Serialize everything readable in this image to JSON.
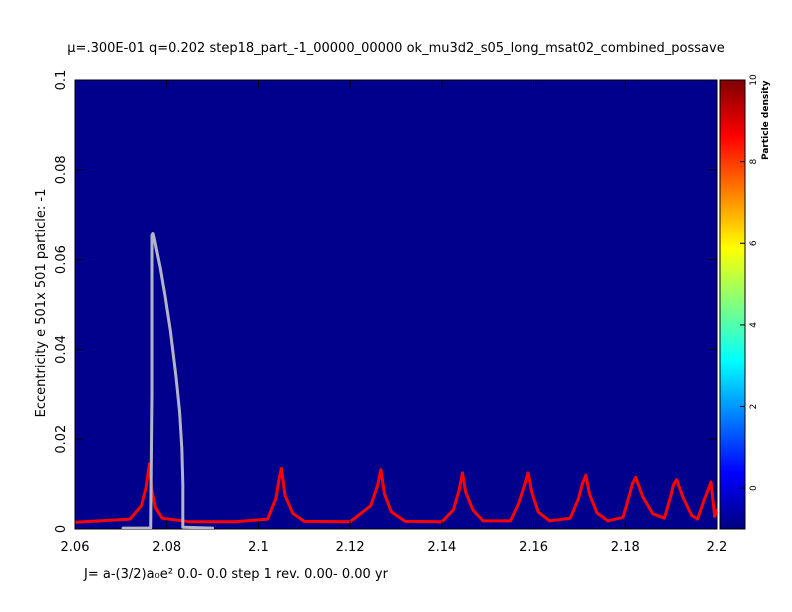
{
  "chart_data": {
    "type": "heatmap",
    "title": "μ=.300E-01 q=0.202 step18_part_-1_00000_00000   ok_mu3d2_s05_long_msat02_combined_possave",
    "xlabel": "J= a-(3/2)a₀e²       0.0-      0.0 step  1 rev.   0.00-    0.00 yr",
    "ylabel": "Eccentricity e   501x 501 particle:   -1",
    "xlim": [
      2.06,
      2.2
    ],
    "ylim": [
      0,
      0.1
    ],
    "xticks": [
      2.06,
      2.08,
      2.1,
      2.12,
      2.14,
      2.16,
      2.18,
      2.2
    ],
    "xtick_labels": [
      "2.06",
      "2.08",
      "2.1",
      "2.12",
      "2.14",
      "2.16",
      "2.18",
      "2.2"
    ],
    "yticks": [
      0,
      0.02,
      0.04,
      0.06,
      0.08,
      0.1
    ],
    "ytick_labels": [
      "0",
      "0.02",
      "0.04",
      "0.06",
      "0.08",
      "0.1"
    ],
    "background_color": "#00008c",
    "colorbar": {
      "label": "Particle density",
      "min": -1,
      "max": 10,
      "ticks": [
        0,
        2,
        4,
        6,
        8,
        10
      ],
      "tick_labels": [
        "0",
        "2",
        "4",
        "6",
        "8",
        "10"
      ],
      "colormap": "jet"
    },
    "series": [
      {
        "color": "#ff0000",
        "x": [
          2.06,
          2.072,
          2.0745,
          2.0755,
          2.0762,
          2.0768,
          2.0775,
          2.079,
          2.085,
          2.095,
          2.102,
          2.1038,
          2.1045,
          2.105,
          2.1058,
          2.1075,
          2.11,
          2.12,
          2.1245,
          2.126,
          2.1267,
          2.1275,
          2.129,
          2.132,
          2.14,
          2.1425,
          2.1438,
          2.1445,
          2.1452,
          2.1468,
          2.149,
          2.155,
          2.1568,
          2.158,
          2.1588,
          2.1596,
          2.161,
          2.1635,
          2.168,
          2.1698,
          2.1707,
          2.1714,
          2.1722,
          2.1738,
          2.1762,
          2.1795,
          2.1808,
          2.1816,
          2.1823,
          2.1838,
          2.186,
          2.1885,
          2.1898,
          2.1905,
          2.1912,
          2.1926,
          2.1945,
          2.1958,
          2.1972,
          2.1981,
          2.1987,
          2.1995,
          2.2
        ],
        "y": [
          0.0015,
          0.0022,
          0.0052,
          0.0092,
          0.0145,
          0.0085,
          0.0048,
          0.0024,
          0.0016,
          0.0016,
          0.0022,
          0.0068,
          0.0112,
          0.0135,
          0.0075,
          0.0035,
          0.0017,
          0.0016,
          0.0052,
          0.0098,
          0.0132,
          0.0078,
          0.0038,
          0.0017,
          0.0016,
          0.0042,
          0.0088,
          0.0125,
          0.0082,
          0.0042,
          0.0018,
          0.0018,
          0.0058,
          0.0096,
          0.0125,
          0.0082,
          0.0038,
          0.0018,
          0.0024,
          0.0068,
          0.0102,
          0.012,
          0.0078,
          0.0036,
          0.0018,
          0.0026,
          0.0072,
          0.0102,
          0.0115,
          0.0072,
          0.0034,
          0.0024,
          0.0068,
          0.0098,
          0.011,
          0.007,
          0.003,
          0.0022,
          0.0065,
          0.0088,
          0.0105,
          0.0028,
          0.0042
        ]
      },
      {
        "color": "#b4b4c8",
        "x": [
          2.0705,
          2.0765,
          2.0768,
          2.0768,
          2.077,
          2.0772,
          2.0778,
          2.0786,
          2.0796,
          2.0808,
          2.082,
          2.0828,
          2.0833,
          2.0835,
          2.0835,
          2.0835,
          2.09
        ],
        "y": [
          0.0002,
          0.0002,
          0.03,
          0.0655,
          0.0658,
          0.065,
          0.062,
          0.058,
          0.052,
          0.044,
          0.034,
          0.026,
          0.018,
          0.01,
          0.005,
          0.0004,
          0.0002
        ]
      }
    ]
  }
}
